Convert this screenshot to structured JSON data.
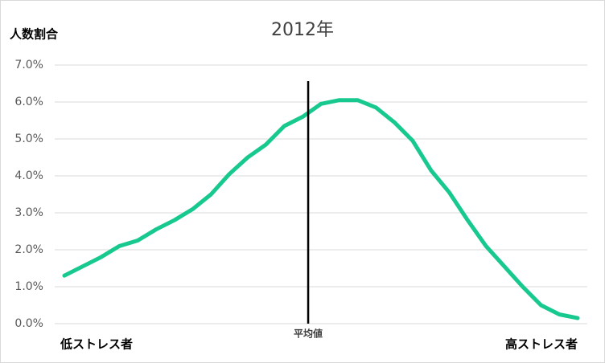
{
  "chart_data": {
    "type": "line",
    "title": "2012年",
    "y_label": "人数割合",
    "categories": [
      null,
      null,
      null,
      null,
      null,
      null,
      null,
      null,
      null,
      null,
      null,
      null,
      null,
      null,
      null,
      null,
      null,
      null,
      null,
      null,
      null,
      null,
      null,
      null,
      null,
      null,
      null,
      null,
      null
    ],
    "series": [
      {
        "color": "#17c98f",
        "values": [
          1.3,
          1.55,
          1.8,
          2.1,
          2.25,
          2.55,
          2.8,
          3.1,
          3.5,
          4.05,
          4.5,
          4.85,
          5.35,
          5.6,
          5.95,
          6.05,
          6.05,
          5.85,
          5.45,
          4.95,
          4.15,
          3.55,
          2.8,
          2.1,
          1.55,
          1.0,
          0.5,
          0.25,
          0.15
        ]
      }
    ],
    "ylim": [
      0,
      7
    ],
    "yticks": [
      {
        "value": 0,
        "label": "0.0%"
      },
      {
        "value": 1,
        "label": "1.0%"
      },
      {
        "value": 2,
        "label": "2.0%"
      },
      {
        "value": 3,
        "label": "3.0%"
      },
      {
        "value": 4,
        "label": "4.0%"
      },
      {
        "value": 5,
        "label": "5.0%"
      },
      {
        "value": 6,
        "label": "6.0%"
      },
      {
        "value": 7,
        "label": "7.0%"
      }
    ],
    "grid": true,
    "left_end_label": "低ストレス者",
    "right_end_label": "高ストレス者",
    "mean_line": {
      "label": "平均値",
      "x": 13.3,
      "color": "#000000"
    }
  }
}
